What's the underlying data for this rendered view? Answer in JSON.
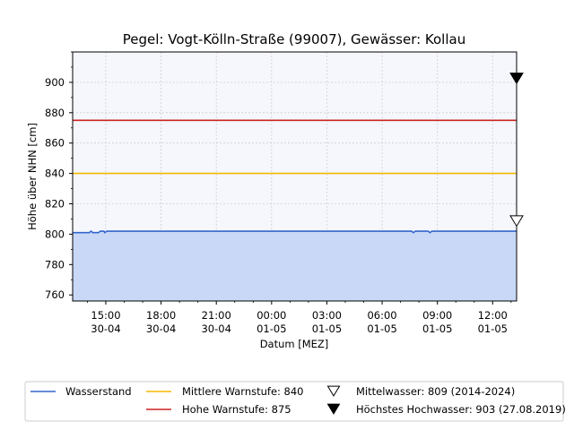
{
  "chart_data": {
    "type": "line",
    "title": "Pegel:  Vogt-Kölln-Straße (99007), Gewässer:  Kollau",
    "xlabel": "Datum [MEZ]",
    "ylabel": "Höhe über NHN [cm]",
    "ylim": [
      756,
      920
    ],
    "yticks": [
      760,
      780,
      800,
      820,
      840,
      860,
      880,
      900
    ],
    "x_hours_range": [
      -1.8,
      22.3
    ],
    "xticks": [
      {
        "h": 0,
        "time": "15:00",
        "date": "30-04"
      },
      {
        "h": 3,
        "time": "18:00",
        "date": "30-04"
      },
      {
        "h": 6,
        "time": "21:00",
        "date": "30-04"
      },
      {
        "h": 9,
        "time": "00:00",
        "date": "01-05"
      },
      {
        "h": 12,
        "time": "03:00",
        "date": "01-05"
      },
      {
        "h": 15,
        "time": "06:00",
        "date": "01-05"
      },
      {
        "h": 18,
        "time": "09:00",
        "date": "01-05"
      },
      {
        "h": 21,
        "time": "12:00",
        "date": "01-05"
      }
    ],
    "grid": true,
    "legend_position": "bottom",
    "series": [
      {
        "name": "Wasserstand",
        "color": "#3366cc",
        "fill": "#c9d8f7",
        "points": [
          [
            -1.8,
            801
          ],
          [
            -0.9,
            801
          ],
          [
            -0.8,
            802
          ],
          [
            -0.7,
            801
          ],
          [
            -0.4,
            801
          ],
          [
            -0.3,
            802
          ],
          [
            -0.1,
            802
          ],
          [
            -0.05,
            801
          ],
          [
            0.05,
            802
          ],
          [
            16.6,
            802
          ],
          [
            16.7,
            801
          ],
          [
            16.8,
            802
          ],
          [
            17.5,
            802
          ],
          [
            17.6,
            801
          ],
          [
            17.7,
            802
          ],
          [
            22.3,
            802
          ]
        ]
      }
    ],
    "thresholds": [
      {
        "name": "Mittlere Warnstufe: 840",
        "value": 840,
        "color": "#f5b800"
      },
      {
        "name": "Hohe Warnstufe: 875",
        "value": 875,
        "color": "#cc2222"
      }
    ],
    "markers": [
      {
        "name": "Mittelwasser: 809 (2014-2024)",
        "value": 809,
        "style": "hollow-triangle-down"
      },
      {
        "name": "Höchstes Hochwasser: 903 (27.08.2019)",
        "value": 903,
        "style": "filled-triangle-down"
      }
    ]
  }
}
